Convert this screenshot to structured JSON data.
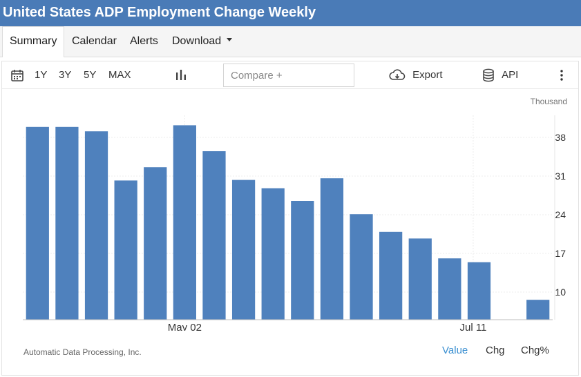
{
  "title": "United States ADP Employment Change Weekly",
  "nav": {
    "summary": "Summary",
    "calendar": "Calendar",
    "alerts": "Alerts",
    "download": "Download"
  },
  "toolbar": {
    "range_1y": "1Y",
    "range_3y": "3Y",
    "range_5y": "5Y",
    "range_max": "MAX",
    "compare_placeholder": "Compare +",
    "export": "Export",
    "api": "API"
  },
  "unit_label": "Thousand",
  "source": "Automatic Data Processing, Inc.",
  "value_tabs": {
    "value": "Value",
    "chg": "Chg",
    "chgpct": "Chg%"
  },
  "colors": {
    "bar": "#4f81bd",
    "accent": "#3a8fd1",
    "header": "#4a7bb7"
  },
  "icons": [
    "calendar-icon",
    "bar-chart-icon",
    "cloud-download-icon",
    "database-icon",
    "more-vertical-icon"
  ],
  "chart_data": {
    "type": "bar",
    "values": [
      39.9,
      39.9,
      39.1,
      30.2,
      32.6,
      40.2,
      35.5,
      30.3,
      28.8,
      26.5,
      30.6,
      24.1,
      20.9,
      19.7,
      16.1,
      15.4,
      null,
      8.6
    ],
    "ylim": [
      5,
      42
    ],
    "yticks": [
      10,
      17,
      24,
      31,
      38
    ],
    "xticks": [
      {
        "index": 5.5,
        "label": "May 02"
      },
      {
        "index": 15.3,
        "label": "Jul 11"
      }
    ],
    "grid": true
  }
}
